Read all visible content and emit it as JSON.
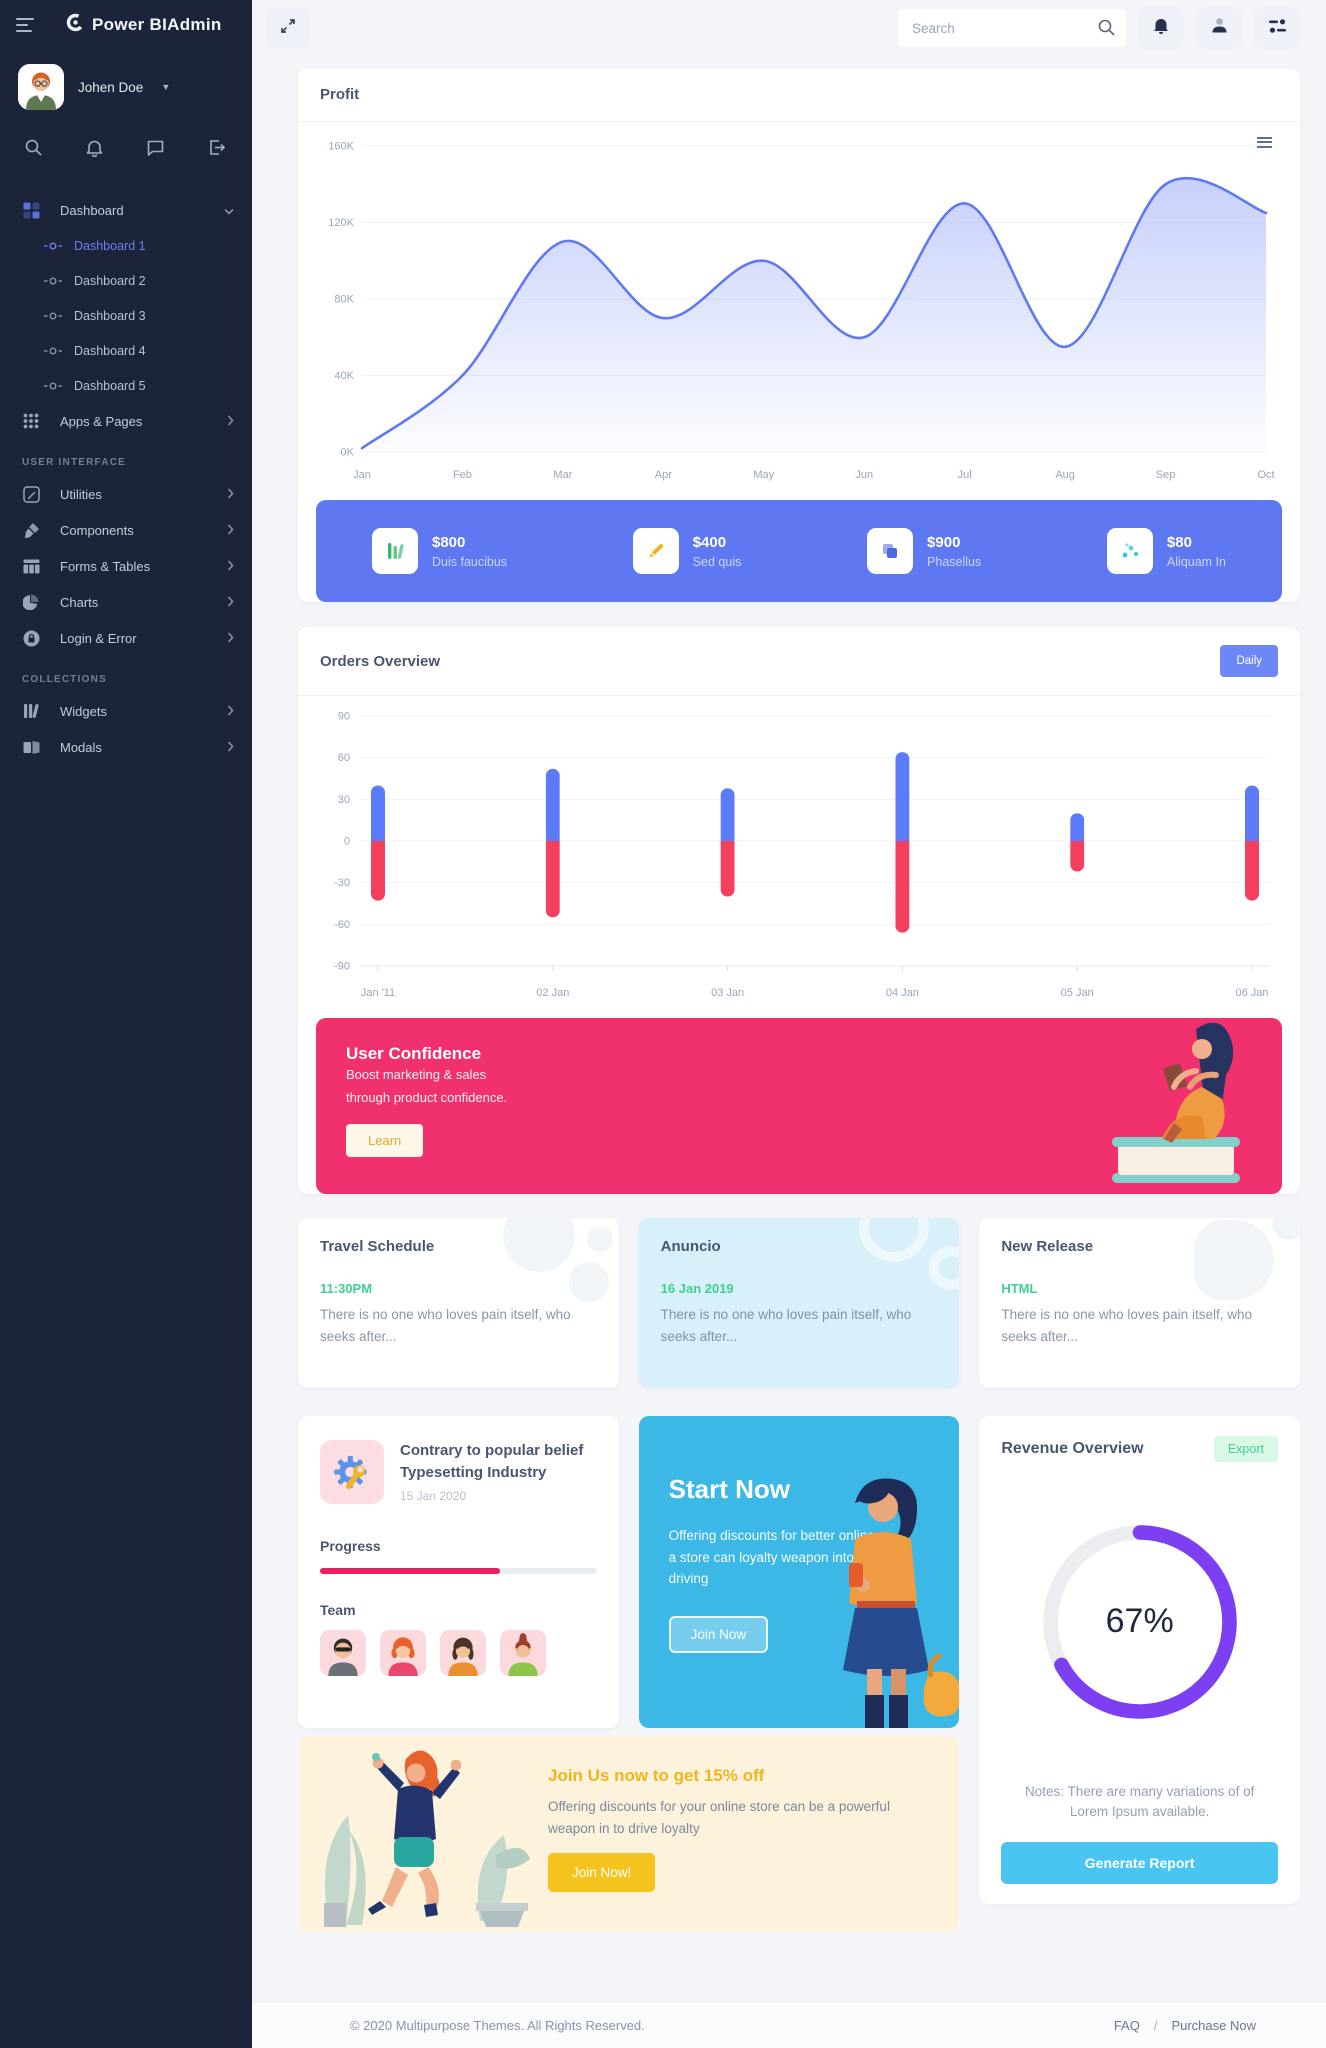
{
  "app": {
    "logo_text": "Power BIAdmin"
  },
  "sidebar": {
    "user_name": "Johen Doe",
    "menu": {
      "dashboard_label": "Dashboard",
      "dashboard_children": [
        "Dashboard 1",
        "Dashboard 2",
        "Dashboard 3",
        "Dashboard 4",
        "Dashboard 5"
      ],
      "apps_label": "Apps & Pages",
      "section_user_interface": "USER INTERFACE",
      "utilities_label": "Utilities",
      "components_label": "Components",
      "forms_label": "Forms & Tables",
      "charts_label": "Charts",
      "login_label": "Login & Error",
      "section_collections": "COLLECTIONS",
      "widgets_label": "Widgets",
      "modals_label": "Modals"
    }
  },
  "topbar": {
    "search_placeholder": "Search"
  },
  "profit_card": {
    "title": "Profit"
  },
  "stats": [
    {
      "icon": "green-bars-icon",
      "value": "$800",
      "label": "Duis faucibus"
    },
    {
      "icon": "yellow-pencil-icon",
      "value": "$400",
      "label": "Sed quis"
    },
    {
      "icon": "blue-squares-icon",
      "value": "$900",
      "label": "Phasellus"
    },
    {
      "icon": "teal-scatter-icon",
      "value": "$80",
      "label": "Aliquam In"
    }
  ],
  "orders_card": {
    "title": "Orders Overview",
    "filter_button": "Daily"
  },
  "confidence_banner": {
    "title": "User Confidence",
    "line1": "Boost marketing & sales",
    "line2": "through product confidence.",
    "button": "Learn"
  },
  "info_cards": [
    {
      "title": "Travel Schedule",
      "highlight": "11:30PM",
      "text": "There is no one who loves pain itself, who seeks after..."
    },
    {
      "title": "Anuncio",
      "highlight": "16 Jan 2019",
      "text": "There is no one who loves pain itself, who seeks after..."
    },
    {
      "title": "New Release",
      "highlight": "HTML",
      "text": "There is no one who loves pain itself, who seeks after..."
    }
  ],
  "project_card": {
    "title_line1": "Contrary to popular belief",
    "title_line2": "Typesetting Industry",
    "date": "15 Jan 2020",
    "progress_label": "Progress",
    "progress_percent": 65,
    "team_label": "Team"
  },
  "start_card": {
    "title": "Start Now",
    "text": "Offering discounts for better online a store can loyalty weapon into driving",
    "button": "Join Now"
  },
  "revenue_card": {
    "title": "Revenue Overview",
    "badge": "Export",
    "percent_label": "67%",
    "notes": "Notes: There are many variations of of Lorem Ipsum available.",
    "button": "Generate Report"
  },
  "join_card": {
    "title": "Join Us now to get 15% off",
    "text": "Offering discounts for your online store can be a powerful weapon in to drive loyalty",
    "button": "Join Now!"
  },
  "footer": {
    "copyright": "© 2020 Multipurpose Themes. All Rights Reserved.",
    "link_faq": "FAQ",
    "separator": "/",
    "link_purchase": "Purchase Now"
  },
  "colors": {
    "sidebar_bg": "#1b2438",
    "accent_blue": "#5d78f0",
    "active_item": "#6f7ff5",
    "bar_up": "#5b7bfa",
    "bar_down": "#f43f5e",
    "banner_pink": "#f1316d",
    "donut_purple": "#7c3ff2",
    "green_highlight": "#3ed08f",
    "start_blue": "#3cb8e6",
    "join_yellow": "#f5c31d",
    "progress_pink": "#ea1e63"
  },
  "chart_data": [
    {
      "id": "profit",
      "type": "area",
      "title": "Profit",
      "x": [
        "Jan",
        "Feb",
        "Mar",
        "Apr",
        "May",
        "Jun",
        "Jul",
        "Aug",
        "Sep",
        "Oct"
      ],
      "values": [
        2,
        40,
        110,
        70,
        100,
        60,
        130,
        55,
        140,
        125
      ],
      "unit": "K",
      "ylim": [
        0,
        160
      ],
      "yticks": [
        0,
        40,
        80,
        120,
        160
      ],
      "ytick_labels": [
        "0K",
        "40K",
        "80K",
        "120K",
        "160K"
      ],
      "line_color": "#5f79f2",
      "fill_from": "rgba(122,143,245,0.42)",
      "fill_to": "rgba(122,143,245,0.02)",
      "grid": true,
      "legend": false
    },
    {
      "id": "orders",
      "type": "bar",
      "title": "Orders Overview",
      "categories": [
        "Jan '11",
        "02 Jan",
        "03 Jan",
        "04 Jan",
        "05 Jan",
        "06 Jan"
      ],
      "series": [
        {
          "name": "positive",
          "color": "#5b7bfa",
          "values": [
            40,
            52,
            38,
            64,
            20,
            40
          ]
        },
        {
          "name": "negative",
          "color": "#f43f5e",
          "values": [
            -43,
            -55,
            -40,
            -66,
            -22,
            -43
          ]
        }
      ],
      "ylim": [
        -90,
        90
      ],
      "yticks": [
        90,
        60,
        30,
        0,
        -30,
        -60,
        -90
      ],
      "bar_style": "capsule",
      "grid": true,
      "legend": false
    },
    {
      "id": "revenue",
      "type": "donut",
      "percent": 67,
      "label": "67%",
      "color": "#7c3ff2",
      "track": "#ededf1"
    }
  ]
}
